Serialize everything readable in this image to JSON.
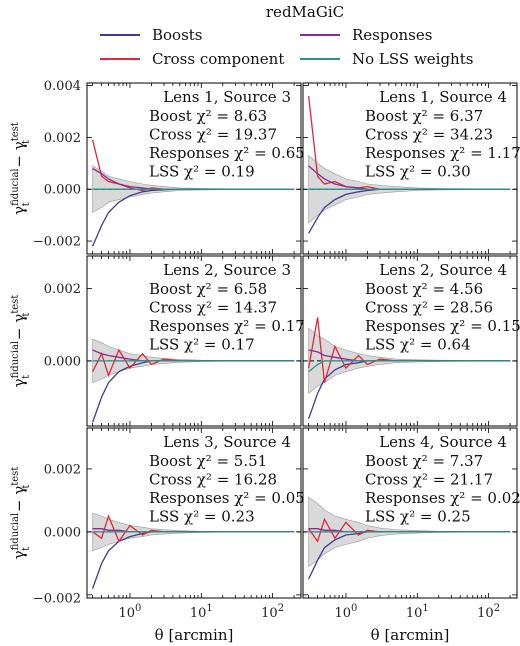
{
  "legend": {
    "title": "redMaGiC",
    "items": [
      {
        "label": "Boosts",
        "color": "#3b3f8c"
      },
      {
        "label": "Responses",
        "color": "#8e2a8c"
      },
      {
        "label": "Cross component",
        "color": "#e0283a"
      },
      {
        "label": "No LSS weights",
        "color": "#2f8f8a"
      }
    ]
  },
  "axes": {
    "xlabel": "θ [arcmin]",
    "ylabel_html": "γ_t^fiducial − γ_t^test",
    "x_tick_labels": [
      "10^0",
      "10^1",
      "10^2"
    ],
    "row_y_tick_labels": [
      [
        "0.004",
        "0.002",
        "0.000",
        "−0.002"
      ],
      [
        "0.002",
        "0.000"
      ],
      [
        "0.002",
        "0.000",
        "−0.002"
      ]
    ]
  },
  "chart_data": [
    {
      "type": "line",
      "panel": "Lens 1, Source 3",
      "title": "Lens 1, Source 3",
      "annotations": [
        "Boost χ² = 8.63",
        "Cross χ² = 19.37",
        "Responses χ² = 0.65",
        "LSS χ² = 0.19"
      ],
      "xscale": "log",
      "xlim": [
        0.25,
        250
      ],
      "ylim": [
        -0.0025,
        0.0041
      ],
      "x": [
        0.3,
        0.4,
        0.5,
        0.7,
        1.0,
        1.5,
        2,
        3,
        5,
        10,
        20,
        50,
        100,
        200
      ],
      "series": [
        {
          "name": "Boosts",
          "values": [
            -0.0022,
            -0.0014,
            -0.0009,
            -0.0005,
            -0.00025,
            -0.0001,
            -5e-05,
            -2e-05,
            0,
            0,
            0,
            0,
            0,
            0
          ]
        },
        {
          "name": "Cross component",
          "values": [
            0.0019,
            0.0005,
            0.0003,
            0.0002,
            5e-05,
            -5e-05,
            5e-05,
            0,
            0,
            0,
            0,
            0,
            0,
            0
          ]
        },
        {
          "name": "Responses",
          "values": [
            0.0008,
            0.0006,
            0.0004,
            0.0002,
            0.0001,
            5e-05,
            0,
            0,
            0,
            0,
            0,
            0,
            0,
            0
          ]
        },
        {
          "name": "No LSS weights",
          "values": [
            0,
            0,
            0,
            0,
            0,
            0,
            0,
            0,
            0,
            0,
            0,
            0,
            0,
            0
          ]
        }
      ],
      "band": [
        0.0009,
        0.0007,
        0.0005,
        0.0004,
        0.0003,
        0.0002,
        0.00015,
        0.0001,
        5e-05,
        3e-05,
        2e-05,
        1e-05,
        1e-05,
        1e-05
      ]
    },
    {
      "type": "line",
      "panel": "Lens 1, Source 4",
      "title": "Lens 1, Source 4",
      "annotations": [
        "Boost χ² = 6.37",
        "Cross χ² = 34.23",
        "Responses χ² = 1.17",
        "LSS χ² = 0.30"
      ],
      "xscale": "log",
      "xlim": [
        0.25,
        250
      ],
      "ylim": [
        -0.0025,
        0.0041
      ],
      "x": [
        0.3,
        0.4,
        0.5,
        0.7,
        1.0,
        1.5,
        2,
        3,
        5,
        10,
        20,
        50,
        100,
        200
      ],
      "series": [
        {
          "name": "Boosts",
          "values": [
            -0.0017,
            -0.0011,
            -0.0007,
            -0.0004,
            -0.0002,
            -0.0001,
            -5e-05,
            0,
            0,
            0,
            0,
            0,
            0,
            0
          ]
        },
        {
          "name": "Cross component",
          "values": [
            0.0036,
            0.0005,
            0.0002,
            0.0003,
            0.0001,
            5e-05,
            0.0001,
            0,
            0,
            0,
            0,
            0,
            0,
            0
          ]
        },
        {
          "name": "Responses",
          "values": [
            0.0009,
            0.0006,
            0.0004,
            0.0002,
            0.0001,
            5e-05,
            0,
            0,
            0,
            0,
            0,
            0,
            0,
            0
          ]
        },
        {
          "name": "No LSS weights",
          "values": [
            0,
            0,
            0,
            0,
            0,
            0,
            0,
            0,
            0,
            0,
            0,
            0,
            0,
            0
          ]
        }
      ],
      "band": [
        0.0013,
        0.001,
        0.0008,
        0.0006,
        0.0004,
        0.0003,
        0.0002,
        0.00015,
        0.0001,
        5e-05,
        3e-05,
        2e-05,
        1e-05,
        1e-05
      ]
    },
    {
      "type": "line",
      "panel": "Lens 2, Source 3",
      "title": "Lens 2, Source 3",
      "annotations": [
        "Boost χ² = 6.58",
        "Cross χ² = 14.37",
        "Responses χ² = 0.17",
        "LSS χ² = 0.17"
      ],
      "xscale": "log",
      "xlim": [
        0.25,
        250
      ],
      "ylim": [
        -0.0018,
        0.0029
      ],
      "x": [
        0.3,
        0.4,
        0.5,
        0.7,
        1.0,
        1.5,
        2,
        3,
        5,
        10,
        20,
        50,
        100,
        200
      ],
      "series": [
        {
          "name": "Boosts",
          "values": [
            -0.0017,
            -0.001,
            -0.0006,
            -0.0003,
            -0.00015,
            -5e-05,
            0,
            0,
            0,
            0,
            0,
            0,
            0,
            0
          ]
        },
        {
          "name": "Cross component",
          "values": [
            -0.0003,
            0.0002,
            -0.0004,
            0.0003,
            -0.0002,
            0.0002,
            -0.0001,
            5e-05,
            0,
            0,
            0,
            0,
            0,
            0
          ]
        },
        {
          "name": "Responses",
          "values": [
            0.0003,
            0.0002,
            0.00015,
            0.0001,
            5e-05,
            0,
            0,
            0,
            0,
            0,
            0,
            0,
            0,
            0
          ]
        },
        {
          "name": "No LSS weights",
          "values": [
            0,
            0,
            0,
            0,
            0,
            0,
            0,
            0,
            0,
            0,
            0,
            0,
            0,
            0
          ]
        }
      ],
      "band": [
        0.0006,
        0.0005,
        0.0004,
        0.0003,
        0.0002,
        0.00015,
        0.0001,
        7e-05,
        4e-05,
        2e-05,
        1e-05,
        1e-05,
        1e-05,
        1e-05
      ]
    },
    {
      "type": "line",
      "panel": "Lens 2, Source 4",
      "title": "Lens 2, Source 4",
      "annotations": [
        "Boost χ² = 4.56",
        "Cross χ² = 28.56",
        "Responses χ² = 0.15",
        "LSS χ² = 0.64"
      ],
      "xscale": "log",
      "xlim": [
        0.25,
        250
      ],
      "ylim": [
        -0.0018,
        0.0029
      ],
      "x": [
        0.3,
        0.4,
        0.5,
        0.7,
        1.0,
        1.5,
        2,
        3,
        5,
        10,
        20,
        50,
        100,
        200
      ],
      "series": [
        {
          "name": "Boosts",
          "values": [
            -0.0016,
            -0.0009,
            -0.0005,
            -0.00025,
            -0.0001,
            -5e-05,
            0,
            0,
            0,
            0,
            0,
            0,
            0,
            0
          ]
        },
        {
          "name": "Cross component",
          "values": [
            -0.0002,
            0.0012,
            -0.0006,
            0.0004,
            -0.0002,
            0.00015,
            -0.0001,
            5e-05,
            0,
            0,
            0,
            0,
            0,
            0
          ]
        },
        {
          "name": "Responses",
          "values": [
            0.0003,
            0.00025,
            0.00015,
            0.0001,
            5e-05,
            0,
            0,
            0,
            0,
            0,
            0,
            0,
            0,
            0
          ]
        },
        {
          "name": "No LSS weights",
          "values": [
            -0.0003,
            -0.0001,
            0,
            0,
            0,
            0,
            0,
            0,
            0,
            0,
            0,
            0,
            0,
            0
          ]
        }
      ],
      "band": [
        0.0009,
        0.0007,
        0.0006,
        0.0004,
        0.0003,
        0.0002,
        0.00015,
        0.0001,
        5e-05,
        3e-05,
        2e-05,
        1e-05,
        1e-05,
        1e-05
      ]
    },
    {
      "type": "line",
      "panel": "Lens 3, Source 4",
      "title": "Lens 3, Source 4",
      "annotations": [
        "Boost χ² = 5.51",
        "Cross χ² = 16.28",
        "Responses χ² = 0.05",
        "LSS χ² = 0.23"
      ],
      "xscale": "log",
      "xlim": [
        0.25,
        250
      ],
      "ylim": [
        -0.0021,
        0.0033
      ],
      "x": [
        0.3,
        0.4,
        0.5,
        0.7,
        1.0,
        1.5,
        2,
        3,
        5,
        10,
        20,
        50,
        100,
        200
      ],
      "series": [
        {
          "name": "Boosts",
          "values": [
            -0.0018,
            -0.001,
            -0.0006,
            -0.0003,
            -0.00015,
            -5e-05,
            0,
            0,
            0,
            0,
            0,
            0,
            0,
            0
          ]
        },
        {
          "name": "Cross component",
          "values": [
            0.0,
            -0.0002,
            0.0005,
            -0.0003,
            0.0002,
            -0.0001,
            5e-05,
            0,
            0,
            0,
            0,
            0,
            0,
            0
          ]
        },
        {
          "name": "Responses",
          "values": [
            0.0001,
            0.0001,
            5e-05,
            5e-05,
            0,
            0,
            0,
            0,
            0,
            0,
            0,
            0,
            0,
            0
          ]
        },
        {
          "name": "No LSS weights",
          "values": [
            0,
            0,
            0,
            0,
            0,
            0,
            0,
            0,
            0,
            0,
            0,
            0,
            0,
            0
          ]
        }
      ],
      "band": [
        0.0006,
        0.0005,
        0.0004,
        0.0003,
        0.0002,
        0.00015,
        0.0001,
        7e-05,
        4e-05,
        2e-05,
        1e-05,
        1e-05,
        1e-05,
        1e-05
      ]
    },
    {
      "type": "line",
      "panel": "Lens 4, Source 4",
      "title": "Lens 4, Source 4",
      "annotations": [
        "Boost χ² = 7.37",
        "Cross χ² = 21.17",
        "Responses χ² = 0.02",
        "LSS χ² = 0.25"
      ],
      "xscale": "log",
      "xlim": [
        0.25,
        250
      ],
      "ylim": [
        -0.0021,
        0.0033
      ],
      "x": [
        0.3,
        0.4,
        0.5,
        0.7,
        1.0,
        1.5,
        2,
        3,
        5,
        10,
        20,
        50,
        100,
        200
      ],
      "series": [
        {
          "name": "Boosts",
          "values": [
            -0.0015,
            -0.0009,
            -0.0005,
            -0.00025,
            -0.0001,
            -5e-05,
            0,
            0,
            0,
            0,
            0,
            0,
            0,
            0
          ]
        },
        {
          "name": "Cross component",
          "values": [
            0.0001,
            -0.0003,
            0.0004,
            -0.0002,
            0.0003,
            -0.0001,
            5e-05,
            0,
            0,
            0,
            0,
            0,
            0,
            0
          ]
        },
        {
          "name": "Responses",
          "values": [
            0.0001,
            0.0001,
            5e-05,
            5e-05,
            0,
            0,
            0,
            0,
            0,
            0,
            0,
            0,
            0,
            0
          ]
        },
        {
          "name": "No LSS weights",
          "values": [
            0,
            0,
            0,
            0,
            0,
            0,
            0,
            0,
            0,
            0,
            0,
            0,
            0,
            0
          ]
        }
      ],
      "band": [
        0.0011,
        0.0009,
        0.0007,
        0.0005,
        0.0004,
        0.0003,
        0.0002,
        0.00012,
        7e-05,
        4e-05,
        2e-05,
        1e-05,
        1e-05,
        1e-05
      ]
    }
  ]
}
